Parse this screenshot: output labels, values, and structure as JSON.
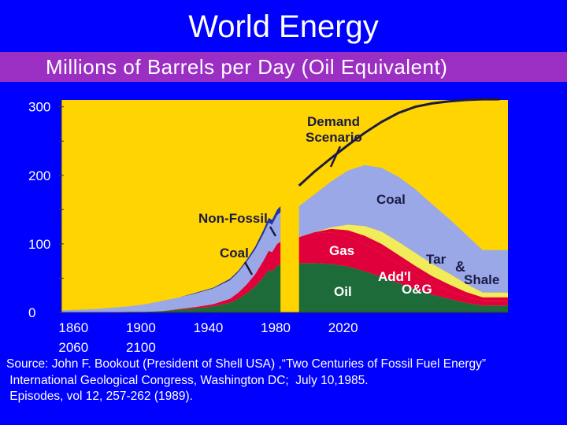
{
  "slide": {
    "title": "World Energy",
    "subtitle": "Millions of Barrels per Day (Oil Equivalent)"
  },
  "chart_data": {
    "type": "area",
    "ylim": [
      0,
      310
    ],
    "xlim": [
      1850,
      2115
    ],
    "y_ticks": [
      {
        "value": 0,
        "label": "0"
      },
      {
        "value": 100,
        "label": "100"
      },
      {
        "value": 200,
        "label": "200"
      },
      {
        "value": 300,
        "label": "300"
      }
    ],
    "x_ticks": [
      {
        "value": 1860,
        "line1": "1860",
        "line2": "2060"
      },
      {
        "value": 1900,
        "line1": "1900",
        "line2": "2100"
      },
      {
        "value": 1940,
        "line1": "1940",
        "line2": ""
      },
      {
        "value": 1980,
        "line1": "1980",
        "line2": ""
      },
      {
        "value": 2020,
        "line1": "2020",
        "line2": ""
      }
    ],
    "colors": {
      "background": "#ffd400",
      "oil": "#1e6b3a",
      "gas": "#e0003c",
      "other_og": "#e0003c",
      "tar_shale": "#f2ec5a",
      "coal": "#9aa8e8",
      "non_fossil": "#2233aa",
      "demand": "#1a1a44"
    },
    "historical": {
      "x": [
        1850,
        1870,
        1890,
        1900,
        1910,
        1920,
        1930,
        1940,
        1950,
        1955,
        1960,
        1965,
        1970,
        1973,
        1975,
        1978,
        1980
      ],
      "oil": [
        0,
        0,
        1,
        1,
        2,
        4,
        6,
        9,
        14,
        20,
        28,
        38,
        52,
        62,
        60,
        68,
        70
      ],
      "gas": [
        0,
        0,
        0,
        0,
        0,
        1,
        2,
        3,
        6,
        9,
        13,
        18,
        24,
        28,
        28,
        32,
        33
      ],
      "coal": [
        3,
        5,
        8,
        11,
        15,
        17,
        20,
        23,
        27,
        30,
        33,
        36,
        39,
        41,
        40,
        42,
        43
      ],
      "non_fossil": [
        0,
        0,
        0,
        0,
        0,
        0,
        1,
        1,
        2,
        2,
        3,
        4,
        6,
        7,
        7,
        8,
        9
      ]
    },
    "projection": {
      "x": [
        1991,
        2000,
        2010,
        2020,
        2030,
        2040,
        2050,
        2060,
        2070,
        2080,
        2090,
        2100
      ],
      "oil": [
        72,
        72,
        71,
        67,
        60,
        52,
        43,
        34,
        26,
        20,
        14,
        10
      ],
      "gas": [
        38,
        43,
        46,
        44,
        40,
        34,
        27,
        21,
        16,
        12,
        9,
        7
      ],
      "other_og": [
        0,
        2,
        5,
        9,
        12,
        14,
        14,
        13,
        11,
        9,
        7,
        5
      ],
      "tar_shale": [
        0,
        0,
        2,
        8,
        14,
        18,
        19,
        19,
        18,
        16,
        12,
        7
      ],
      "coal": [
        45,
        55,
        67,
        79,
        89,
        93,
        95,
        93,
        87,
        80,
        72,
        62
      ]
    },
    "demand_scenario": {
      "x": [
        1991,
        2000,
        2010,
        2020,
        2030,
        2040,
        2050,
        2060,
        2070,
        2080,
        2090,
        2100,
        2110
      ],
      "y": [
        185,
        205,
        225,
        244,
        262,
        278,
        291,
        300,
        305,
        308,
        310,
        311,
        311
      ]
    },
    "annotations": {
      "demand_line1": "Demand",
      "demand_line2": "Scenario",
      "coal_projection": "Coal",
      "non_fossil": "Non-Fossil",
      "coal_historical": "Coal",
      "gas": "Gas",
      "addl": "Add'l",
      "og": "O&G",
      "oil": "Oil",
      "tar": "Tar",
      "amp": "&",
      "shale": "Shale"
    }
  },
  "source": {
    "line1": "Source: John F. Bookout (President of Shell USA) ,“Two Centuries of Fossil Fuel Energy”",
    "line2": " International Geological Congress, Washington DC;  July 10,1985.",
    "line3": " Episodes, vol 12, 257-262 (1989)."
  }
}
